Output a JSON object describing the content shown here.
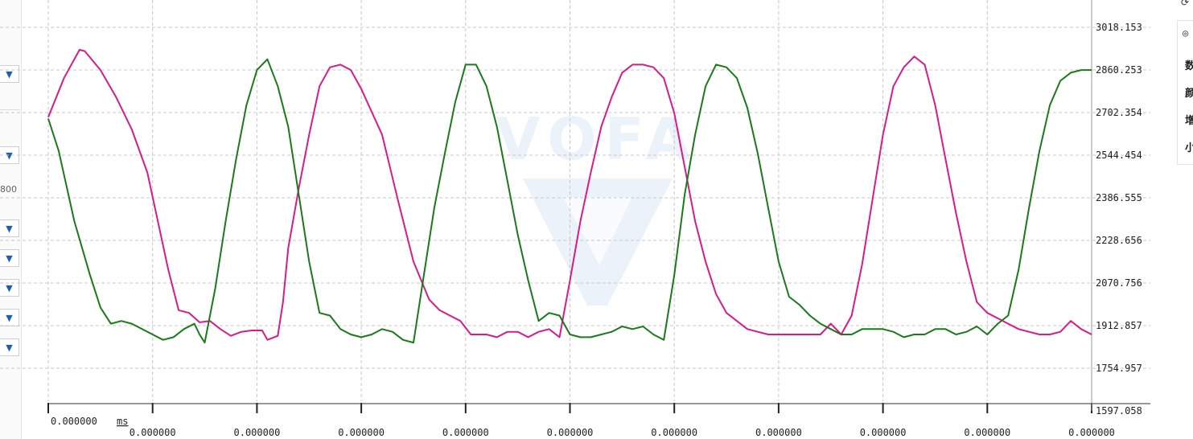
{
  "left_panel": {
    "dropdown_arrow": "▼",
    "value_text": "800"
  },
  "right_panel": {
    "labels": [
      "数",
      "颜",
      "增",
      "小"
    ],
    "top_icon": "settings-icon",
    "eye_icon": "eye-icon"
  },
  "watermark": {
    "text": "VOFA"
  },
  "colors": {
    "series_magenta": "#d81b86",
    "series_green": "#1a7a1a",
    "grid": "#c8c8c8",
    "watermark": "#dce8f6"
  },
  "chart_data": {
    "type": "line",
    "x_unit": "ms",
    "x_tick_labels": [
      "0.000000",
      "0.000000",
      "0.000000",
      "0.000000",
      "0.000000",
      "0.000000",
      "0.000000",
      "0.000000",
      "0.000000",
      "0.000000",
      "0.000000"
    ],
    "y_tick_labels": [
      "3018.153",
      "2860.253",
      "2702.354",
      "2544.454",
      "2386.555",
      "2228.656",
      "2070.756",
      "1912.857",
      "1754.957",
      "1597.058"
    ],
    "ylim": [
      1597.058,
      3018.153
    ],
    "xlim": [
      0,
      100
    ],
    "grid": true,
    "series": [
      {
        "color": "#d81b86",
        "x": [
          0,
          1.5,
          3,
          3.5,
          5,
          6.5,
          8,
          9.5,
          10.5,
          11.5,
          12.5,
          13.5,
          14.5,
          15.5,
          16.5,
          17.5,
          18.5,
          19.5,
          20.5,
          21,
          22,
          22.5,
          23,
          24,
          25,
          26,
          27,
          28,
          29,
          30,
          32,
          33.5,
          35,
          36.5,
          37.5,
          38.5,
          39.5,
          40.5,
          41.5,
          42,
          43,
          44,
          45,
          46,
          47,
          48,
          49,
          50,
          51,
          52,
          53,
          54,
          55,
          56,
          57,
          58,
          59,
          60,
          61,
          62,
          63,
          64,
          65,
          66,
          67,
          68,
          69,
          70,
          71,
          72,
          73,
          74,
          75,
          76,
          77,
          78,
          79,
          80,
          81,
          82,
          83,
          84,
          85,
          86,
          87,
          88,
          89,
          90,
          91,
          92,
          93,
          94,
          95,
          96,
          97,
          98,
          99,
          100
        ],
        "values": [
          2685,
          2830,
          2935,
          2930,
          2860,
          2760,
          2640,
          2480,
          2300,
          2120,
          1970,
          1960,
          1925,
          1930,
          1900,
          1875,
          1890,
          1895,
          1895,
          1860,
          1875,
          2000,
          2200,
          2420,
          2620,
          2800,
          2870,
          2880,
          2860,
          2790,
          2620,
          2380,
          2150,
          2010,
          1970,
          1950,
          1930,
          1880,
          1880,
          1880,
          1870,
          1890,
          1890,
          1870,
          1890,
          1900,
          1870,
          2080,
          2300,
          2480,
          2650,
          2760,
          2850,
          2880,
          2880,
          2870,
          2830,
          2700,
          2500,
          2300,
          2150,
          2030,
          1960,
          1930,
          1900,
          1890,
          1880,
          1880,
          1880,
          1880,
          1880,
          1880,
          1920,
          1880,
          1950,
          2140,
          2380,
          2620,
          2800,
          2870,
          2910,
          2880,
          2730,
          2530,
          2330,
          2150,
          2000,
          1960,
          1940,
          1920,
          1900,
          1890,
          1880,
          1880,
          1890,
          1930,
          1900,
          1880
        ]
      },
      {
        "color": "#1a7a1a",
        "x": [
          0,
          1,
          2.5,
          4,
          5,
          6,
          7,
          8,
          9,
          10,
          11,
          12,
          13,
          14,
          14.5,
          15,
          16,
          17,
          18,
          19,
          20,
          21,
          22,
          23,
          24,
          25,
          26,
          27,
          28,
          29,
          30,
          31,
          32,
          33,
          34,
          35,
          36,
          37,
          38,
          39,
          40,
          41,
          42,
          43,
          44,
          45,
          46,
          47,
          48,
          49,
          50,
          51,
          52,
          53,
          54,
          55,
          56,
          57,
          58,
          59,
          60,
          61,
          62,
          63,
          64,
          65,
          66,
          67,
          68,
          69,
          70,
          71,
          72,
          73,
          74,
          75,
          76,
          77,
          78,
          79,
          80,
          81,
          82,
          83,
          84,
          85,
          86,
          87,
          88,
          89,
          90,
          91,
          92,
          93,
          94,
          95,
          96,
          97,
          98,
          99,
          100
        ],
        "values": [
          2680,
          2560,
          2300,
          2100,
          1980,
          1920,
          1930,
          1920,
          1900,
          1880,
          1860,
          1870,
          1900,
          1920,
          1880,
          1850,
          2050,
          2300,
          2530,
          2730,
          2860,
          2900,
          2800,
          2650,
          2400,
          2150,
          1960,
          1950,
          1900,
          1880,
          1870,
          1880,
          1900,
          1890,
          1860,
          1850,
          2100,
          2350,
          2550,
          2740,
          2880,
          2880,
          2800,
          2650,
          2450,
          2250,
          2080,
          1930,
          1960,
          1950,
          1880,
          1870,
          1870,
          1880,
          1890,
          1910,
          1900,
          1910,
          1880,
          1860,
          2100,
          2400,
          2620,
          2800,
          2880,
          2870,
          2830,
          2720,
          2550,
          2350,
          2150,
          2020,
          1990,
          1950,
          1920,
          1900,
          1880,
          1880,
          1900,
          1900,
          1900,
          1890,
          1870,
          1880,
          1880,
          1900,
          1900,
          1880,
          1890,
          1910,
          1880,
          1920,
          1950,
          2120,
          2350,
          2560,
          2730,
          2820,
          2850,
          2860,
          2860
        ]
      }
    ]
  }
}
